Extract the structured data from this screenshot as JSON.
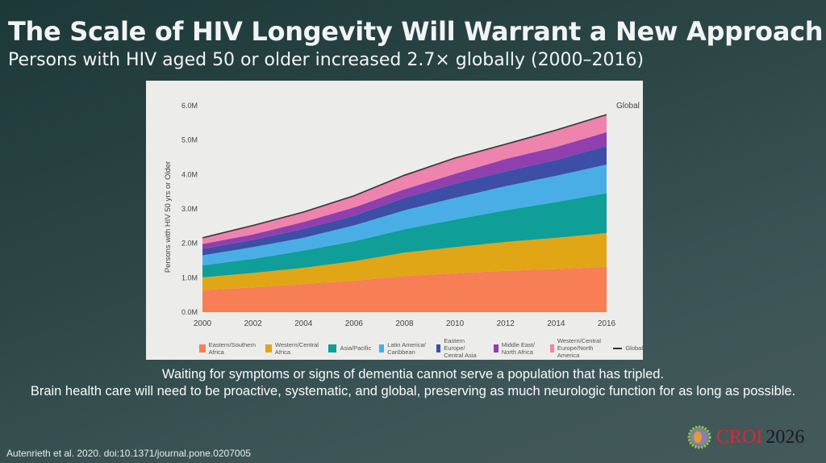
{
  "slide": {
    "title": "The Scale of HIV Longevity Will Warrant a New Approach",
    "subtitle": "Persons with HIV aged 50 or older increased 2.7× globally (2000–2016)",
    "body_lines": [
      "Waiting for symptoms or signs of dementia cannot serve a population that has tripled.",
      "Brain health care will need to be proactive, systematic, and global, preserving as much neurologic function for as long as possible."
    ],
    "citation": "Autenrieth et al. 2020. doi:10.1371/journal.pone.0207005",
    "logo": {
      "name": "CROI",
      "year": "2026",
      "brand_color": "#d42a3a"
    }
  },
  "chart_data": {
    "type": "area",
    "stacked": true,
    "ylabel": "Persons with HIV 50 yrs or Older",
    "xlabel": "",
    "x": [
      2000,
      2002,
      2004,
      2006,
      2008,
      2010,
      2012,
      2014,
      2016
    ],
    "x_tick_labels": [
      "2000",
      "2002",
      "2004",
      "2006",
      "2008",
      "2010",
      "2012",
      "2014",
      "2016"
    ],
    "y_tick_labels": [
      "0.0M",
      "1.0M",
      "2.0M",
      "3.0M",
      "4.0M",
      "5.0M",
      "6.0M"
    ],
    "ylim": [
      0,
      6.0
    ],
    "y_unit": "millions",
    "grid": false,
    "legend_placement": "bottom",
    "series": [
      {
        "name": "Eastern/Southern Africa",
        "color": "#f77e55",
        "values": [
          0.64,
          0.72,
          0.82,
          0.91,
          1.05,
          1.13,
          1.2,
          1.25,
          1.32
        ]
      },
      {
        "name": "Western/Central Africa",
        "color": "#e0a615",
        "values": [
          0.37,
          0.42,
          0.47,
          0.57,
          0.68,
          0.76,
          0.84,
          0.91,
          0.98
        ]
      },
      {
        "name": "Asia/Pacific",
        "color": "#0f9e98",
        "values": [
          0.35,
          0.41,
          0.5,
          0.58,
          0.68,
          0.8,
          0.92,
          1.04,
          1.16
        ]
      },
      {
        "name": "Latin America/ Caribbean",
        "color": "#4aaee6",
        "values": [
          0.29,
          0.34,
          0.37,
          0.46,
          0.55,
          0.63,
          0.7,
          0.76,
          0.83
        ]
      },
      {
        "name": "Eastern Europe/ Central Asia",
        "color": "#3d4ea6",
        "values": [
          0.19,
          0.21,
          0.26,
          0.28,
          0.36,
          0.41,
          0.43,
          0.46,
          0.54
        ]
      },
      {
        "name": "Middle East/ North Africa",
        "color": "#8f3fae",
        "values": [
          0.14,
          0.16,
          0.2,
          0.24,
          0.25,
          0.29,
          0.36,
          0.38,
          0.4
        ]
      },
      {
        "name": "Western/Central Europe/North America",
        "color": "#ee83ad",
        "values": [
          0.18,
          0.26,
          0.29,
          0.34,
          0.41,
          0.46,
          0.43,
          0.49,
          0.51
        ]
      }
    ],
    "global": {
      "name": "Global",
      "label": "Global",
      "color": "#333333",
      "values": [
        2.16,
        2.52,
        2.91,
        3.38,
        3.98,
        4.48,
        4.88,
        5.29,
        5.74
      ]
    }
  }
}
